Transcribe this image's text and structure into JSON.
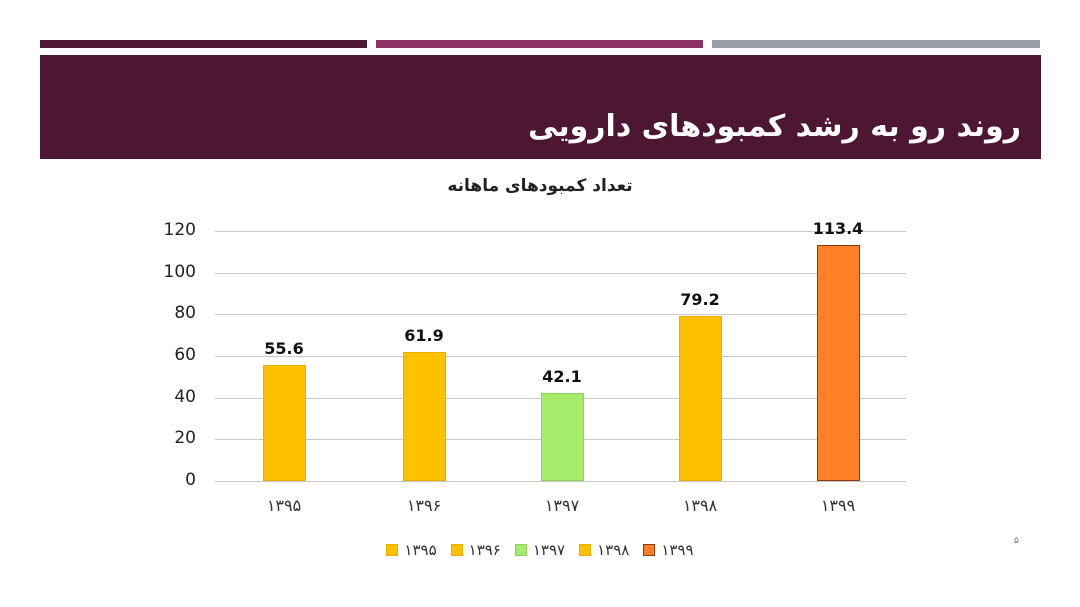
{
  "slide": {
    "title": "روند رو به رشد کمبودهای دارویی",
    "page_number": "۵",
    "colors": {
      "header_bg": "#4d1733",
      "sep_dark": "#4d1733",
      "sep_magenta": "#8c3163",
      "sep_gray": "#9aa0a6"
    }
  },
  "chart_data": {
    "type": "bar",
    "title": "تعداد کمبودهای ماهانه",
    "categories": [
      "۱۳۹۵",
      "۱۳۹۶",
      "۱۳۹۷",
      "۱۳۹۸",
      "۱۳۹۹"
    ],
    "values": [
      55.6,
      61.9,
      42.1,
      79.2,
      113.4
    ],
    "value_labels": [
      "55.6",
      "61.9",
      "42.1",
      "79.2",
      "113.4"
    ],
    "colors": [
      "#ffc000",
      "#ffc000",
      "#a4ec6a",
      "#ffc000",
      "#fe7f28"
    ],
    "border_colors": [
      "#e8b000",
      "#e8b000",
      "#8fd45a",
      "#e8b000",
      "#8a3a10"
    ],
    "xlabel": "",
    "ylabel": "",
    "ylim": [
      0,
      120
    ],
    "yticks": [
      "0",
      "20",
      "40",
      "60",
      "80",
      "100",
      "120"
    ],
    "grid": true,
    "legend_position": "bottom",
    "legend": [
      "۱۳۹۵",
      "۱۳۹۶",
      "۱۳۹۷",
      "۱۳۹۸",
      "۱۳۹۹"
    ]
  }
}
